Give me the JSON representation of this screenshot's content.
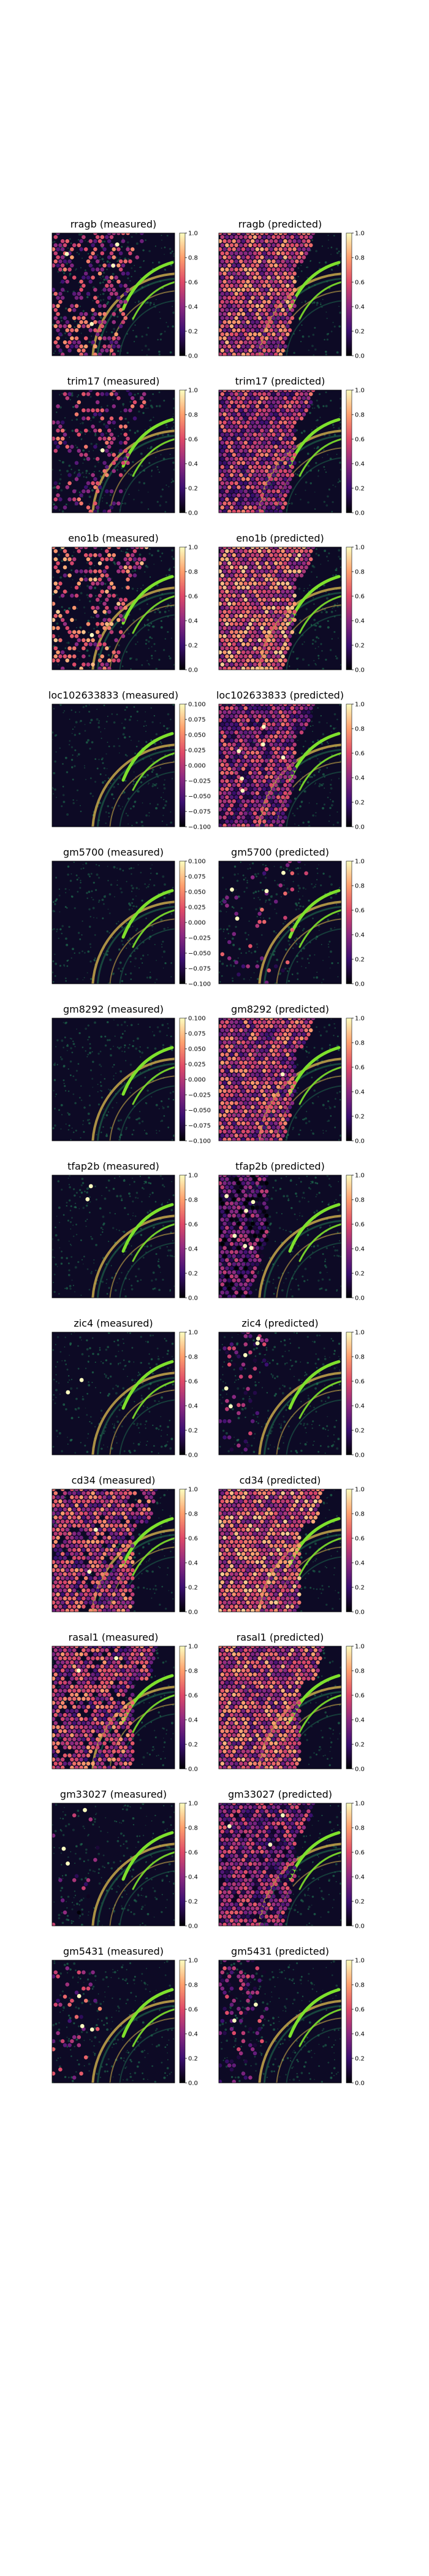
{
  "chart_data": [
    {
      "type": "heatmap",
      "gene": "rragb",
      "title": "rragb (measured)",
      "colorbar": {
        "min": 0.0,
        "max": 1.0,
        "ticks": [
          "0.0",
          "0.2",
          "0.4",
          "0.6",
          "0.8",
          "1.0"
        ]
      },
      "density": 0.45,
      "intensity": 0.5,
      "white_spots": 4,
      "region": "band"
    },
    {
      "type": "heatmap",
      "gene": "rragb",
      "title": "rragb (predicted)",
      "colorbar": {
        "min": 0.0,
        "max": 1.0,
        "ticks": [
          "0.0",
          "0.2",
          "0.4",
          "0.6",
          "0.8",
          "1.0"
        ]
      },
      "density": 1.0,
      "intensity": 0.55,
      "white_spots": 0,
      "region": "band"
    },
    {
      "type": "heatmap",
      "gene": "trim17",
      "title": "trim17 (measured)",
      "colorbar": {
        "min": 0.0,
        "max": 1.0,
        "ticks": [
          "0.0",
          "0.2",
          "0.4",
          "0.6",
          "0.8",
          "1.0"
        ]
      },
      "density": 0.3,
      "intensity": 0.45,
      "white_spots": 1,
      "region": "band"
    },
    {
      "type": "heatmap",
      "gene": "trim17",
      "title": "trim17 (predicted)",
      "colorbar": {
        "min": 0.0,
        "max": 1.0,
        "ticks": [
          "0.0",
          "0.2",
          "0.4",
          "0.6",
          "0.8",
          "1.0"
        ]
      },
      "density": 1.0,
      "intensity": 0.45,
      "white_spots": 0,
      "region": "band"
    },
    {
      "type": "heatmap",
      "gene": "eno1b",
      "title": "eno1b (measured)",
      "colorbar": {
        "min": 0.0,
        "max": 1.0,
        "ticks": [
          "0.0",
          "0.2",
          "0.4",
          "0.6",
          "0.8",
          "1.0"
        ]
      },
      "density": 0.4,
      "intensity": 0.6,
      "white_spots": 1,
      "region": "band"
    },
    {
      "type": "heatmap",
      "gene": "eno1b",
      "title": "eno1b (predicted)",
      "colorbar": {
        "min": 0.0,
        "max": 1.0,
        "ticks": [
          "0.0",
          "0.2",
          "0.4",
          "0.6",
          "0.8",
          "1.0"
        ]
      },
      "density": 1.0,
      "intensity": 0.6,
      "white_spots": 0,
      "region": "band"
    },
    {
      "type": "heatmap",
      "gene": "loc102633833",
      "title": "loc102633833 (measured)",
      "colorbar": {
        "min": -0.1,
        "max": 0.1,
        "ticks": [
          "−0.100",
          "−0.075",
          "−0.050",
          "−0.025",
          "0.000",
          "0.025",
          "0.050",
          "0.075",
          "0.100"
        ]
      },
      "density": 0.0,
      "intensity": 0.0,
      "white_spots": 0,
      "region": "none"
    },
    {
      "type": "heatmap",
      "gene": "loc102633833",
      "title": "loc102633833 (predicted)",
      "colorbar": {
        "min": 0.0,
        "max": 1.0,
        "ticks": [
          "0.0",
          "0.2",
          "0.4",
          "0.6",
          "0.8",
          "1.0"
        ]
      },
      "density": 1.0,
      "intensity": 0.4,
      "white_spots": 6,
      "region": "band"
    },
    {
      "type": "heatmap",
      "gene": "gm5700",
      "title": "gm5700 (measured)",
      "colorbar": {
        "min": -0.1,
        "max": 0.1,
        "ticks": [
          "−0.100",
          "−0.075",
          "−0.050",
          "−0.025",
          "0.000",
          "0.025",
          "0.050",
          "0.075",
          "0.100"
        ]
      },
      "density": 0.0,
      "intensity": 0.0,
      "white_spots": 0,
      "region": "none"
    },
    {
      "type": "heatmap",
      "gene": "gm5700",
      "title": "gm5700 (predicted)",
      "colorbar": {
        "min": 0.0,
        "max": 1.0,
        "ticks": [
          "0.0",
          "0.2",
          "0.4",
          "0.6",
          "0.8",
          "1.0"
        ]
      },
      "density": 0.08,
      "intensity": 0.4,
      "white_spots": 4,
      "region": "band"
    },
    {
      "type": "heatmap",
      "gene": "gm8292",
      "title": "gm8292 (measured)",
      "colorbar": {
        "min": -0.1,
        "max": 0.1,
        "ticks": [
          "−0.100",
          "−0.075",
          "−0.050",
          "−0.025",
          "0.000",
          "0.025",
          "0.050",
          "0.075",
          "0.100"
        ]
      },
      "density": 0.0,
      "intensity": 0.0,
      "white_spots": 0,
      "region": "none"
    },
    {
      "type": "heatmap",
      "gene": "gm8292",
      "title": "gm8292 (predicted)",
      "colorbar": {
        "min": 0.0,
        "max": 1.0,
        "ticks": [
          "0.0",
          "0.2",
          "0.4",
          "0.6",
          "0.8",
          "1.0"
        ]
      },
      "density": 1.0,
      "intensity": 0.5,
      "white_spots": 1,
      "region": "band"
    },
    {
      "type": "heatmap",
      "gene": "tfap2b",
      "title": "tfap2b (measured)",
      "colorbar": {
        "min": 0.0,
        "max": 1.0,
        "ticks": [
          "0.0",
          "0.2",
          "0.4",
          "0.6",
          "0.8",
          "1.0"
        ]
      },
      "density": 0.0,
      "intensity": 0.0,
      "white_spots": 2,
      "region": "edge"
    },
    {
      "type": "heatmap",
      "gene": "tfap2b",
      "title": "tfap2b (predicted)",
      "colorbar": {
        "min": 0.0,
        "max": 1.0,
        "ticks": [
          "0.0",
          "0.2",
          "0.4",
          "0.6",
          "0.8",
          "1.0"
        ]
      },
      "density": 1.0,
      "intensity": 0.25,
      "white_spots": 6,
      "region": "edge"
    },
    {
      "type": "heatmap",
      "gene": "zic4",
      "title": "zic4 (measured)",
      "colorbar": {
        "min": 0.0,
        "max": 1.0,
        "ticks": [
          "0.0",
          "0.2",
          "0.4",
          "0.6",
          "0.8",
          "1.0"
        ]
      },
      "density": 0.0,
      "intensity": 0.0,
      "white_spots": 2,
      "region": "edge"
    },
    {
      "type": "heatmap",
      "gene": "zic4",
      "title": "zic4 (predicted)",
      "colorbar": {
        "min": 0.0,
        "max": 1.0,
        "ticks": [
          "0.0",
          "0.2",
          "0.4",
          "0.6",
          "0.8",
          "1.0"
        ]
      },
      "density": 0.15,
      "intensity": 0.3,
      "white_spots": 5,
      "region": "edge"
    },
    {
      "type": "heatmap",
      "gene": "cd34",
      "title": "cd34 (measured)",
      "colorbar": {
        "min": 0.0,
        "max": 1.0,
        "ticks": [
          "0.0",
          "0.2",
          "0.4",
          "0.6",
          "0.8",
          "1.0"
        ]
      },
      "density": 0.9,
      "intensity": 0.5,
      "white_spots": 2,
      "region": "wide"
    },
    {
      "type": "heatmap",
      "gene": "cd34",
      "title": "cd34 (predicted)",
      "colorbar": {
        "min": 0.0,
        "max": 1.0,
        "ticks": [
          "0.0",
          "0.2",
          "0.4",
          "0.6",
          "0.8",
          "1.0"
        ]
      },
      "density": 1.0,
      "intensity": 0.6,
      "white_spots": 0,
      "region": "wide"
    },
    {
      "type": "heatmap",
      "gene": "rasal1",
      "title": "rasal1 (measured)",
      "colorbar": {
        "min": 0.0,
        "max": 1.0,
        "ticks": [
          "0.0",
          "0.2",
          "0.4",
          "0.6",
          "0.8",
          "1.0"
        ]
      },
      "density": 0.85,
      "intensity": 0.5,
      "white_spots": 2,
      "region": "wide"
    },
    {
      "type": "heatmap",
      "gene": "rasal1",
      "title": "rasal1 (predicted)",
      "colorbar": {
        "min": 0.0,
        "max": 1.0,
        "ticks": [
          "0.0",
          "0.2",
          "0.4",
          "0.6",
          "0.8",
          "1.0"
        ]
      },
      "density": 1.0,
      "intensity": 0.55,
      "white_spots": 0,
      "region": "wide"
    },
    {
      "type": "heatmap",
      "gene": "gm33027",
      "title": "gm33027 (measured)",
      "colorbar": {
        "min": 0.0,
        "max": 1.0,
        "ticks": [
          "0.0",
          "0.2",
          "0.4",
          "0.6",
          "0.8",
          "1.0"
        ]
      },
      "density": 0.05,
      "intensity": 0.3,
      "white_spots": 3,
      "region": "edge"
    },
    {
      "type": "heatmap",
      "gene": "gm33027",
      "title": "gm33027 (predicted)",
      "colorbar": {
        "min": 0.0,
        "max": 1.0,
        "ticks": [
          "0.0",
          "0.2",
          "0.4",
          "0.6",
          "0.8",
          "1.0"
        ]
      },
      "density": 1.0,
      "intensity": 0.35,
      "white_spots": 3,
      "region": "band"
    },
    {
      "type": "heatmap",
      "gene": "gm5431",
      "title": "gm5431 (measured)",
      "colorbar": {
        "min": 0.0,
        "max": 1.0,
        "ticks": [
          "0.0",
          "0.2",
          "0.4",
          "0.6",
          "0.8",
          "1.0"
        ]
      },
      "density": 0.15,
      "intensity": 0.45,
      "white_spots": 3,
      "region": "edge"
    },
    {
      "type": "heatmap",
      "gene": "gm5431",
      "title": "gm5431 (predicted)",
      "colorbar": {
        "min": 0.0,
        "max": 1.0,
        "ticks": [
          "0.0",
          "0.2",
          "0.4",
          "0.6",
          "0.8",
          "1.0"
        ]
      },
      "density": 0.3,
      "intensity": 0.35,
      "white_spots": 2,
      "region": "edge"
    }
  ],
  "colors": {
    "tissue_background": "#0d0a25",
    "tissue_texture": "#1f6e4f",
    "hippocampus_band": "#c7a84a",
    "bright_structure": "#7ee02c",
    "colormap": [
      "#000004",
      "#3b0f70",
      "#8c2981",
      "#de4968",
      "#fe9f6d",
      "#fcfdbf"
    ]
  }
}
